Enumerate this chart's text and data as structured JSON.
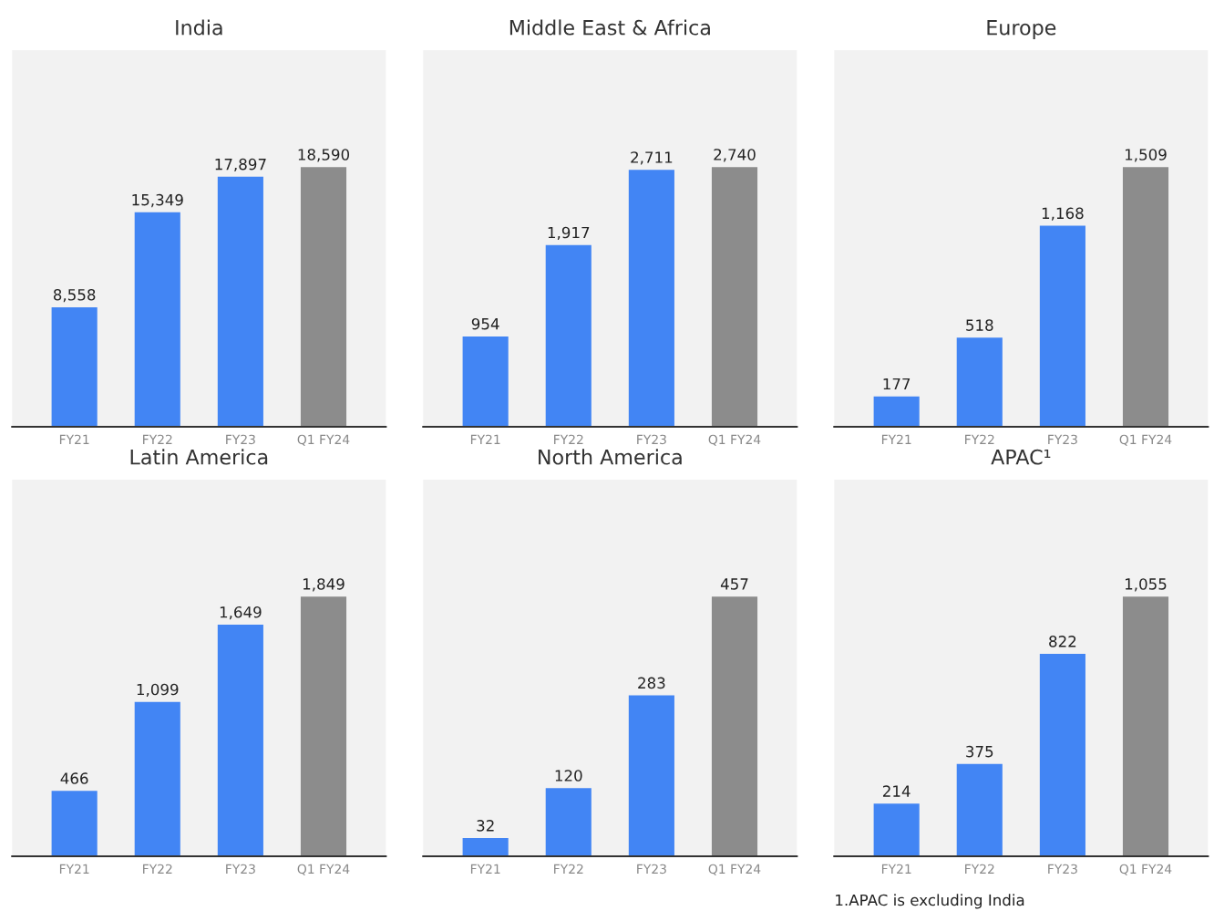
{
  "chart_data": [
    {
      "type": "bar",
      "title": "India",
      "categories": [
        "FY21",
        "FY22",
        "FY23",
        "Q1 FY24"
      ],
      "values": [
        8558,
        15349,
        17897,
        18590
      ],
      "value_labels": [
        "8,558",
        "15,349",
        "17,897",
        "18,590"
      ],
      "colors": [
        "#4285f4",
        "#4285f4",
        "#4285f4",
        "#8c8c8c"
      ],
      "grid": false,
      "legend": false
    },
    {
      "type": "bar",
      "title": "Middle East & Africa",
      "categories": [
        "FY21",
        "FY22",
        "FY23",
        "Q1 FY24"
      ],
      "values": [
        954,
        1917,
        2711,
        2740
      ],
      "value_labels": [
        "954",
        "1,917",
        "2,711",
        "2,740"
      ],
      "colors": [
        "#4285f4",
        "#4285f4",
        "#4285f4",
        "#8c8c8c"
      ],
      "grid": false,
      "legend": false
    },
    {
      "type": "bar",
      "title": "Europe",
      "categories": [
        "FY21",
        "FY22",
        "FY23",
        "Q1 FY24"
      ],
      "values": [
        177,
        518,
        1168,
        1509
      ],
      "value_labels": [
        "177",
        "518",
        "1,168",
        "1,509"
      ],
      "colors": [
        "#4285f4",
        "#4285f4",
        "#4285f4",
        "#8c8c8c"
      ],
      "grid": false,
      "legend": false
    },
    {
      "type": "bar",
      "title": "Latin America",
      "categories": [
        "FY21",
        "FY22",
        "FY23",
        "Q1 FY24"
      ],
      "values": [
        466,
        1099,
        1649,
        1849
      ],
      "value_labels": [
        "466",
        "1,099",
        "1,649",
        "1,849"
      ],
      "colors": [
        "#4285f4",
        "#4285f4",
        "#4285f4",
        "#8c8c8c"
      ],
      "grid": false,
      "legend": false
    },
    {
      "type": "bar",
      "title": "North America",
      "categories": [
        "FY21",
        "FY22",
        "FY23",
        "Q1 FY24"
      ],
      "values": [
        32,
        120,
        283,
        457
      ],
      "value_labels": [
        "32",
        "120",
        "283",
        "457"
      ],
      "colors": [
        "#4285f4",
        "#4285f4",
        "#4285f4",
        "#8c8c8c"
      ],
      "grid": false,
      "legend": false
    },
    {
      "type": "bar",
      "title": "APAC¹",
      "categories": [
        "FY21",
        "FY22",
        "FY23",
        "Q1 FY24"
      ],
      "values": [
        214,
        375,
        822,
        1055
      ],
      "value_labels": [
        "214",
        "375",
        "822",
        "1,055"
      ],
      "colors": [
        "#4285f4",
        "#4285f4",
        "#4285f4",
        "#8c8c8c"
      ],
      "grid": false,
      "legend": false,
      "annotations": [
        "1.APAC is excluding India"
      ]
    }
  ]
}
